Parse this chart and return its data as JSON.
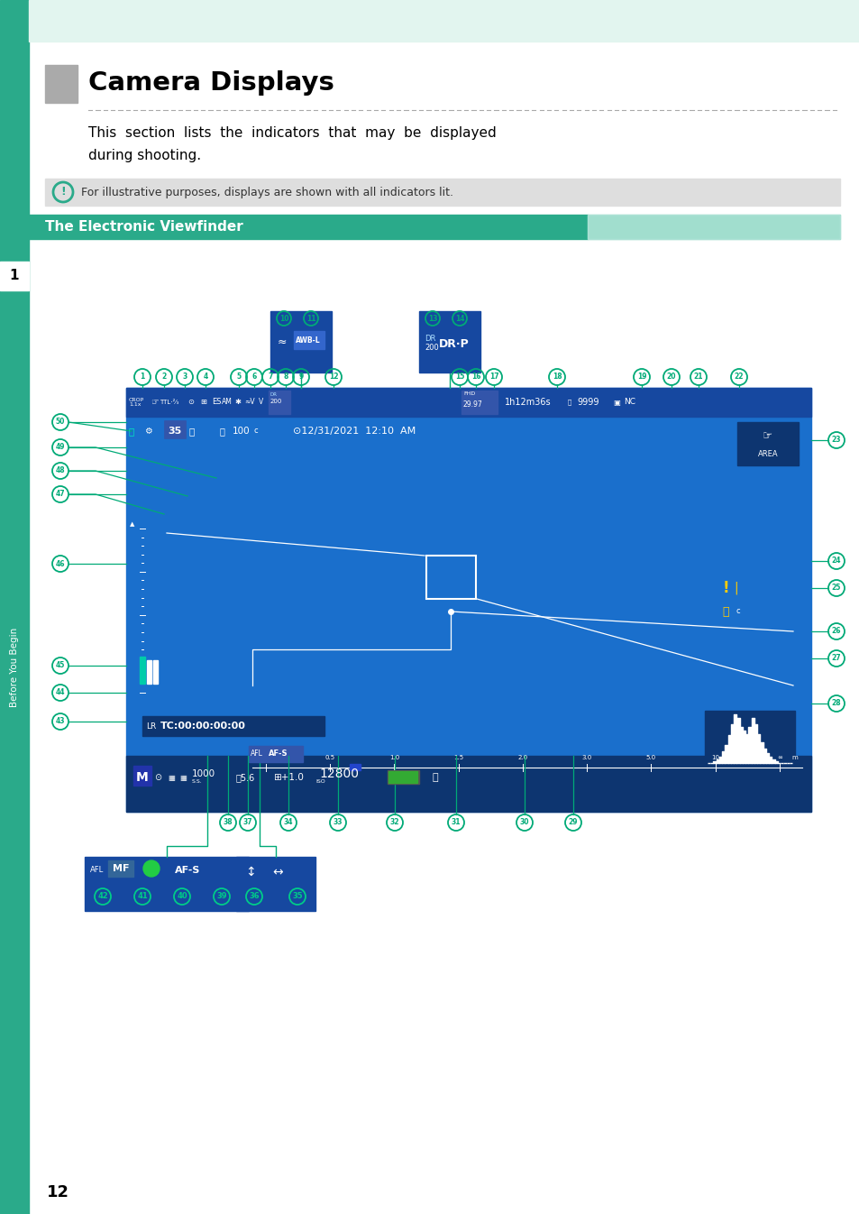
{
  "page_bg": "#ffffff",
  "sidebar_color": "#2aaa8a",
  "sidebar_text": "Before You Begin",
  "chapter_num": "1",
  "page_num": "12",
  "title": "Camera Displays",
  "subtitle": "The Electronic Viewfinder",
  "body_line1": "This  section  lists  the  indicators  that  may  be  displayed",
  "body_line2": "during shooting.",
  "note_text": "For illustrative purposes, displays are shown with all indicators lit.",
  "evf_bg": "#1a6fcc",
  "evf_bar_bg": "#1648a0",
  "evf_dark_bg": "#0d3570",
  "callout_color": "#00aa77",
  "white": "#ffffff",
  "yellow": "#ffcc00",
  "teal_grad_start": "#2aaa8a",
  "teal_grad_end": "#c8ede5",
  "note_bg": "#dedede",
  "gray_sq": "#aaaaaa"
}
